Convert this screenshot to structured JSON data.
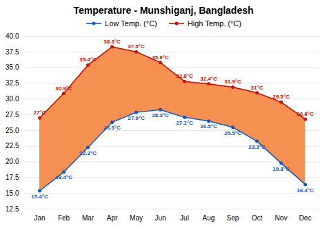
{
  "chart_data": {
    "type": "line",
    "title": "Temperature - Munshiganj, Bangladesh",
    "categories": [
      "Jan",
      "Feb",
      "Mar",
      "Apr",
      "May",
      "Jun",
      "Jul",
      "Aug",
      "Sep",
      "Oct",
      "Nov",
      "Dec"
    ],
    "series": [
      {
        "name": "Low Temp. (°C)",
        "color": "#1155cc",
        "marker": "circle",
        "values": [
          15.4,
          18.4,
          22.3,
          26.3,
          27.9,
          28.3,
          27.1,
          26.5,
          25.5,
          23.3,
          19.8,
          16.4
        ],
        "value_labels": [
          "15.4°C",
          "18.4°C",
          "22.3°C",
          "26.3°C",
          "27.9°C",
          "28.3°C",
          "27.1°C",
          "26.5°C",
          "25.5°C",
          "23.3°C",
          "19.8°C",
          "16.4°C"
        ]
      },
      {
        "name": "High Temp. (°C)",
        "color": "#cc1100",
        "marker": "circle",
        "values": [
          27.0,
          30.9,
          35.4,
          38.3,
          37.5,
          35.8,
          32.8,
          32.4,
          31.9,
          31.0,
          29.5,
          26.8
        ],
        "value_labels": [
          "27°C",
          "30.9°C",
          "35.4°C",
          "38.3°C",
          "37.5°C",
          "35.8°C",
          "32.8°C",
          "32.4°C",
          "31.9°C",
          "31°C",
          "29.5°C",
          "26.8°C"
        ]
      }
    ],
    "color": "#f5823a",
    "ylim": [
      12.5,
      40.0
    ],
    "yticks": [
      12.5,
      {
        "value": 15.0,
        "label": "15.0"
      },
      17.5,
      {
        "value": 20.0,
        "label": "20.0"
      },
      22.5,
      {
        "value": 25.0,
        "label": "25.0"
      },
      27.5,
      {
        "value": 30.0,
        "label": "30.0"
      },
      32.5,
      {
        "value": 35.0,
        "label": "35.0"
      },
      37.5,
      {
        "value": 40.0,
        "label": "40.0"
      }
    ],
    "grid": true,
    "legend": "top",
    "data_labels": true
  }
}
